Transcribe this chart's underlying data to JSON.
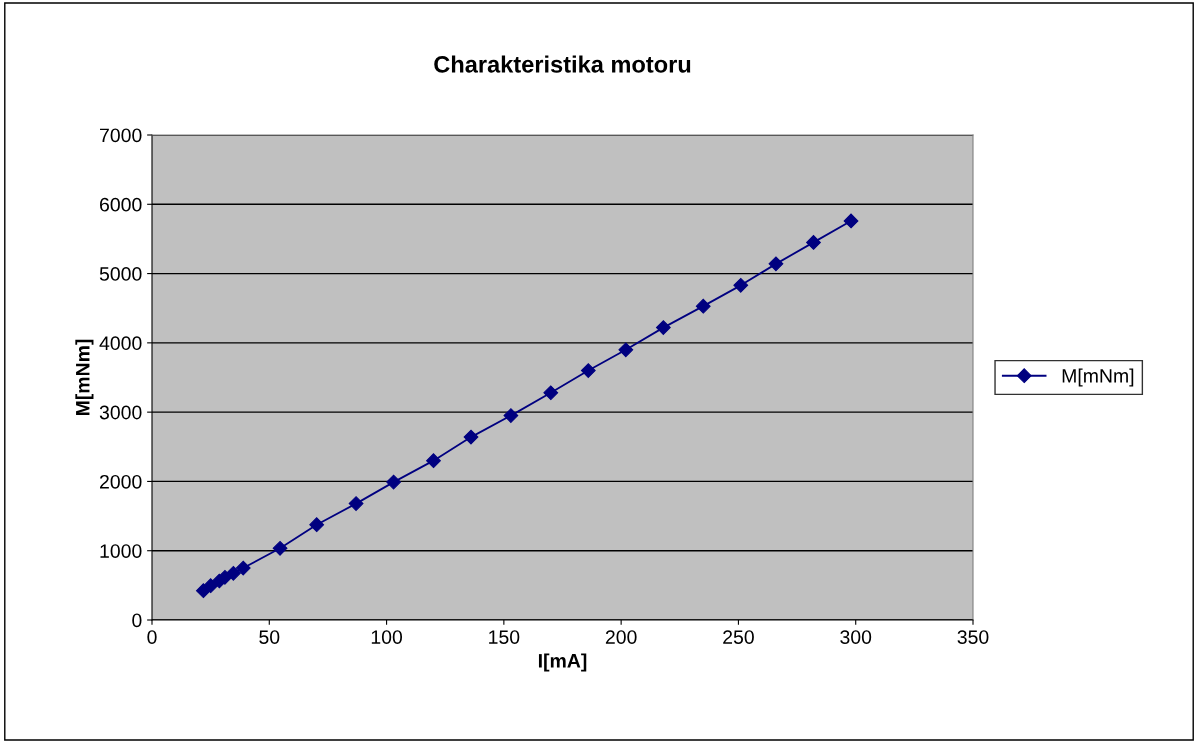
{
  "chart_data": {
    "type": "line",
    "title": "Charakteristika motoru",
    "xlabel": "I[mA]",
    "ylabel": "M[mNm]",
    "x": [
      21.9,
      25.0,
      28.7,
      31.1,
      34.7,
      38.9,
      54.6,
      70.2,
      87,
      103,
      120,
      136,
      153,
      170,
      186,
      202,
      218,
      235,
      251,
      266,
      282,
      298
    ],
    "series": [
      {
        "name": "M[mNm]",
        "color": "#000080",
        "values": [
          423,
          495,
          563,
          616,
          674,
          750,
          1035,
          1375,
          1680,
          1990,
          2300,
          2640,
          2950,
          3280,
          3600,
          3900,
          4220,
          4530,
          4830,
          5140,
          5450,
          5760
        ]
      }
    ],
    "xlim": [
      0,
      350
    ],
    "xticks": [
      0,
      50,
      100,
      150,
      200,
      250,
      300,
      350
    ],
    "ylim": [
      0,
      7000
    ],
    "yticks": [
      0,
      1000,
      2000,
      3000,
      4000,
      5000,
      6000,
      7000
    ],
    "grid": "y",
    "legend": "right",
    "marker": "diamond",
    "line_style": "solid"
  }
}
